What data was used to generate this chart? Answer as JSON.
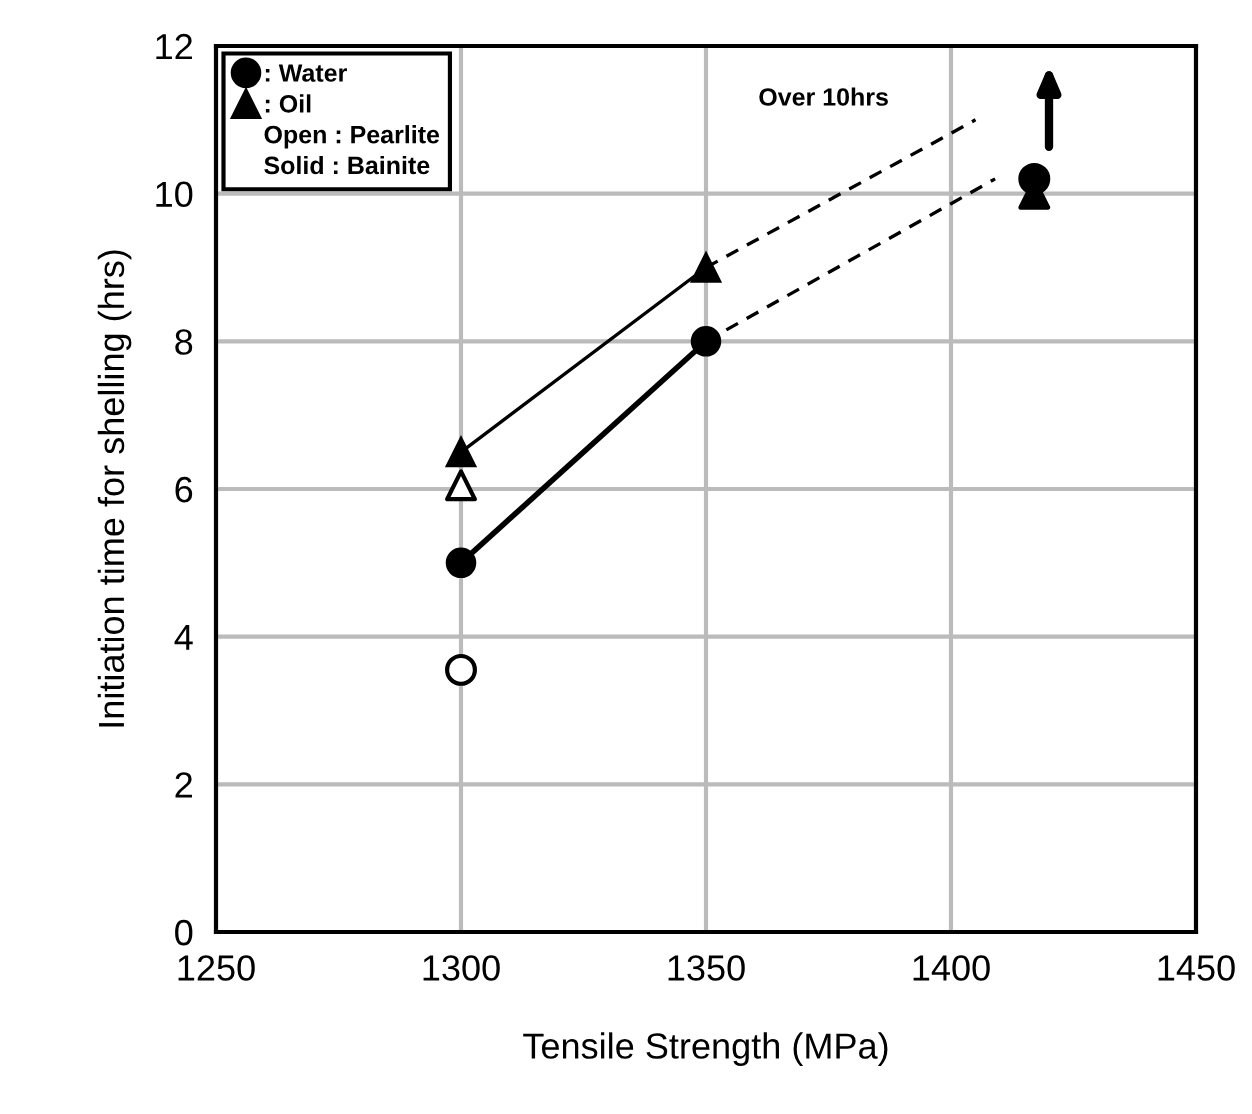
{
  "chart_data": {
    "type": "line",
    "xlabel": "Tensile Strength (MPa)",
    "ylabel": "Initiation time for shelling (hrs)",
    "xlim": [
      1250,
      1450
    ],
    "xticks": [
      1250,
      1300,
      1350,
      1400,
      1450
    ],
    "ylim": [
      0,
      12
    ],
    "yticks": [
      0,
      2,
      4,
      6,
      8,
      10,
      12
    ],
    "grid": true,
    "legend": "top left",
    "series": [
      {
        "name": ": Water",
        "color": "#000000",
        "marker": "circle",
        "line_style": "solid",
        "x": [
          1300,
          1350
        ],
        "values": [
          5,
          8
        ]
      },
      {
        "name": ": Oil",
        "color": "#000000",
        "marker": "triangle",
        "line_style": "solid",
        "x": [
          1300,
          1350
        ],
        "values": [
          6.5,
          9
        ]
      },
      {
        "color": "#000000",
        "marker": "none",
        "line_style": "dashed",
        "x": [
          1350,
          1409
        ],
        "values": [
          8,
          10.2
        ]
      },
      {
        "color": "#000000",
        "marker": "none",
        "line_style": "dashed",
        "x": [
          1350,
          1405
        ],
        "values": [
          9,
          11
        ]
      },
      {
        "type": "scatter",
        "color": "#000000",
        "marker": "circle",
        "x": [
          1417
        ],
        "values": [
          10.2
        ]
      },
      {
        "type": "scatter",
        "color": "#000000",
        "marker": "triangle",
        "x": [
          1417
        ],
        "values": [
          10
        ]
      },
      {
        "type": "scatter",
        "color": "#ffffff",
        "marker": "circle",
        "x": [
          1300
        ],
        "values": [
          3.55
        ]
      },
      {
        "type": "scatter",
        "color": "#ffffff",
        "marker": "triangle",
        "x": [
          1300
        ],
        "values": [
          6.05
        ]
      }
    ],
    "annotations": [
      "Over 10hrs",
      "Open : Pearlite",
      "Solid : Bainite"
    ]
  }
}
